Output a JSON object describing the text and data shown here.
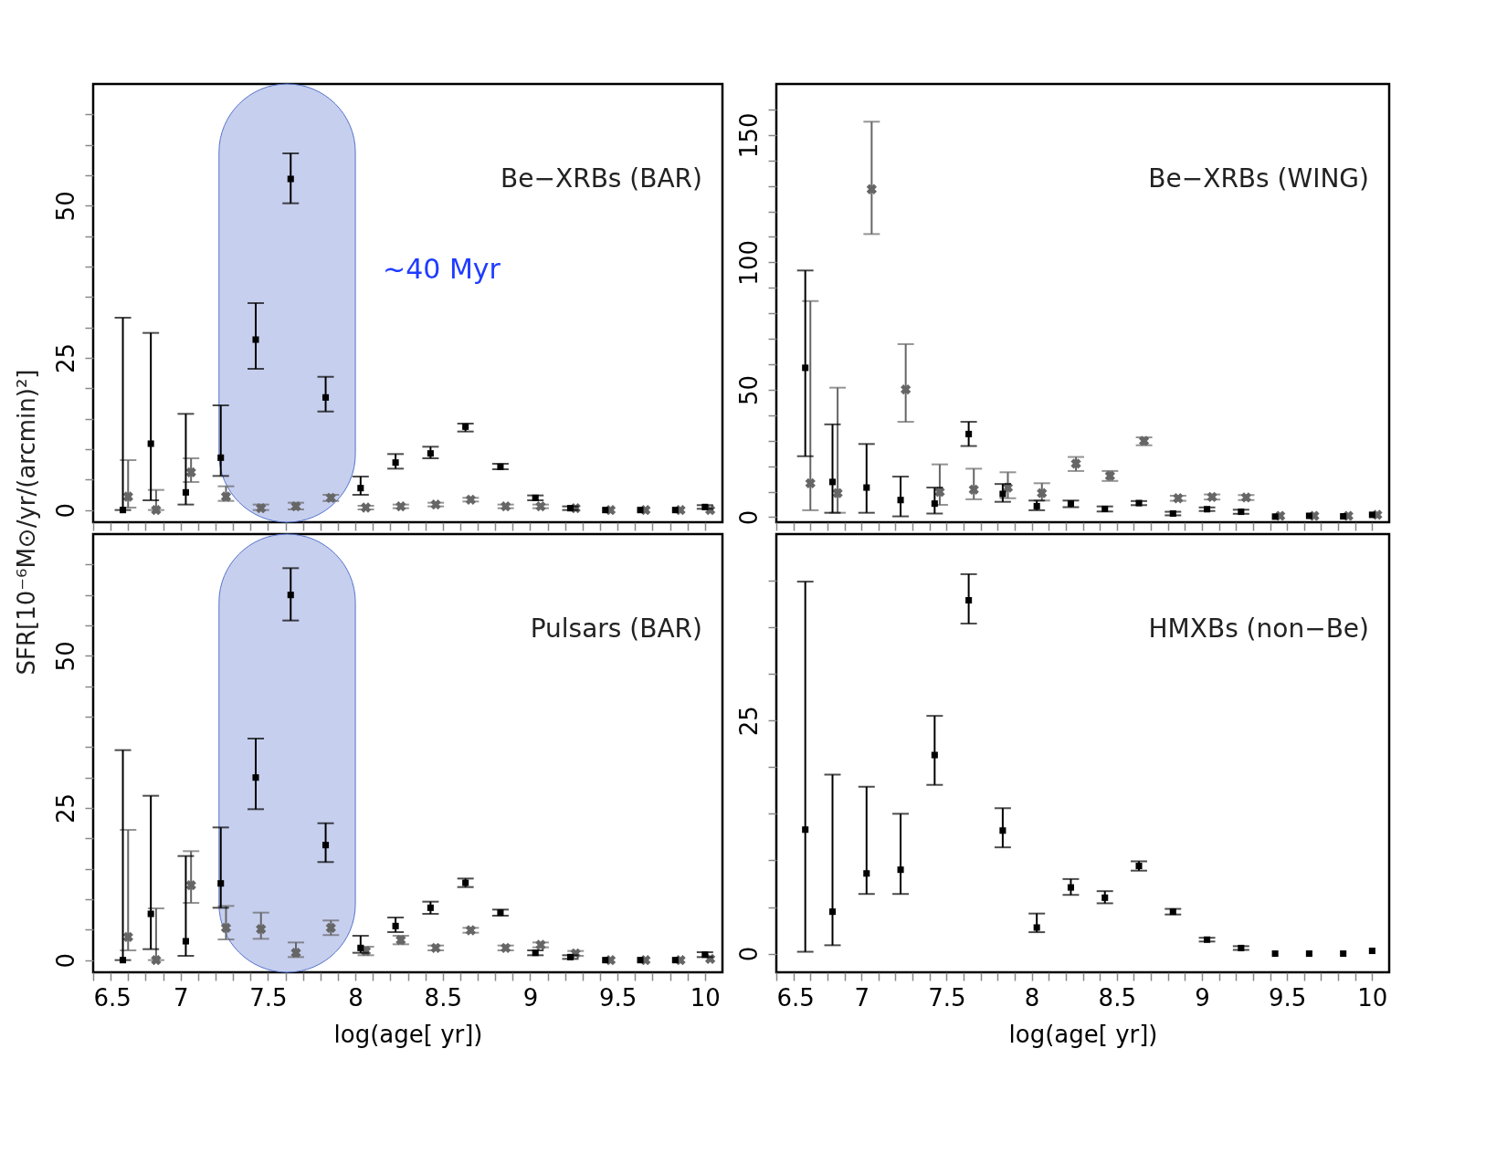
{
  "chart_data": [
    {
      "type": "scatter",
      "title": "Be−XRBs (BAR)",
      "ylabel": "SFR[10⁻⁶M⊙/yr/(arcmin)²]",
      "tick_labels": "y",
      "xlim": [
        6.5,
        10.1
      ],
      "xticks": [
        6.5,
        {
          "value": 6.6,
          "label": null
        },
        {
          "value": 6.7,
          "label": null
        },
        {
          "value": 6.8,
          "label": null
        },
        {
          "value": 6.9,
          "label": null
        },
        7,
        {
          "value": 7.1,
          "label": null
        },
        {
          "value": 7.2,
          "label": null
        },
        {
          "value": 7.3,
          "label": null
        },
        {
          "value": 7.4,
          "label": null
        },
        7.5,
        {
          "value": 7.6,
          "label": null
        },
        {
          "value": 7.7,
          "label": null
        },
        {
          "value": 7.8,
          "label": null
        },
        {
          "value": 7.9,
          "label": null
        },
        8,
        {
          "value": 8.1,
          "label": null
        },
        {
          "value": 8.2,
          "label": null
        },
        {
          "value": 8.3,
          "label": null
        },
        {
          "value": 8.4,
          "label": null
        },
        8.5,
        {
          "value": 8.6,
          "label": null
        },
        {
          "value": 8.7,
          "label": null
        },
        {
          "value": 8.8,
          "label": null
        },
        {
          "value": 8.9,
          "label": null
        },
        9,
        {
          "value": 9.1,
          "label": null
        },
        {
          "value": 9.2,
          "label": null
        },
        {
          "value": 9.3,
          "label": null
        },
        {
          "value": 9.4,
          "label": null
        },
        9.5,
        {
          "value": 9.6,
          "label": null
        },
        {
          "value": 9.7,
          "label": null
        },
        {
          "value": 9.8,
          "label": null
        },
        {
          "value": 9.9,
          "label": null
        },
        10
      ],
      "ylim": [
        -2,
        70
      ],
      "yticks": [
        0,
        {
          "value": 5,
          "label": null
        },
        {
          "value": 10,
          "label": null
        },
        {
          "value": 15,
          "label": null
        },
        {
          "value": 20,
          "label": null
        },
        25,
        {
          "value": 30,
          "label": null
        },
        {
          "value": 35,
          "label": null
        },
        {
          "value": 40,
          "label": null
        },
        {
          "value": 45,
          "label": null
        },
        50,
        {
          "value": 55,
          "label": null
        },
        {
          "value": 60,
          "label": null
        },
        {
          "value": 65,
          "label": null
        }
      ],
      "bands": [
        {
          "axis": "x",
          "from": 7.22,
          "to": 8.0,
          "label": "~40 Myr",
          "color": "#c5cdee"
        }
      ],
      "x": [
        6.67,
        6.83,
        7.03,
        7.23,
        7.43,
        7.63,
        7.83,
        8.03,
        8.23,
        8.43,
        8.63,
        8.83,
        9.03,
        9.23,
        9.43,
        9.63,
        9.83,
        10.0
      ],
      "series": [
        {
          "color": "#666666",
          "marker": "cross",
          "x": [
            6.7,
            6.86,
            7.06,
            7.26,
            7.46,
            7.66,
            7.86,
            8.06,
            8.26,
            8.46,
            8.66,
            8.86,
            9.06,
            9.26,
            9.46,
            9.66,
            9.86,
            10.03
          ],
          "values": [
            2.2,
            0,
            6.2,
            2.2,
            0.3,
            0.6,
            2.0,
            0.4,
            0.6,
            0.9,
            1.7,
            0.6,
            0.6,
            0.3,
            0,
            0,
            0,
            0
          ],
          "errors": [
            [
              0.4,
              8.2
            ],
            [
              0,
              3.3
            ],
            [
              4.6,
              8.5
            ],
            [
              1.5,
              3.9
            ],
            [
              0,
              0.9
            ],
            [
              0.1,
              1.2
            ],
            [
              1.5,
              2.5
            ],
            [
              0.1,
              0.7
            ],
            [
              0.3,
              0.9
            ],
            [
              0.6,
              1.2
            ],
            [
              1.4,
              2.0
            ],
            [
              0.3,
              0.9
            ],
            [
              0.3,
              0.9
            ],
            null,
            null,
            null,
            null,
            null
          ]
        },
        {
          "color": "#000000",
          "marker": "square",
          "values": [
            0,
            10.9,
            2.9,
            8.6,
            28.0,
            54.4,
            18.5,
            3.6,
            7.8,
            9.3,
            13.7,
            7.1,
            2.0,
            0.3,
            0,
            0,
            0,
            0.5
          ],
          "errors": [
            [
              0,
              31.6
            ],
            [
              1.6,
              29.1
            ],
            [
              0.9,
              15.8
            ],
            [
              5.6,
              17.2
            ],
            [
              23.2,
              34.0
            ],
            [
              50.4,
              58.6
            ],
            [
              16.2,
              21.9
            ],
            [
              2.5,
              5.5
            ],
            [
              6.8,
              9.2
            ],
            [
              8.5,
              10.4
            ],
            [
              12.9,
              14.2
            ],
            [
              6.7,
              7.6
            ],
            [
              1.6,
              2.4
            ],
            [
              0,
              0.6
            ],
            null,
            null,
            null,
            [
              0.2,
              0.8
            ]
          ]
        }
      ]
    },
    {
      "type": "scatter",
      "title": "Be−XRBs (WING)",
      "tick_labels": "y",
      "xlim": [
        6.5,
        10.1
      ],
      "xticks": [
        6.5,
        {
          "value": 6.6,
          "label": null
        },
        {
          "value": 6.7,
          "label": null
        },
        {
          "value": 6.8,
          "label": null
        },
        {
          "value": 6.9,
          "label": null
        },
        7,
        {
          "value": 7.1,
          "label": null
        },
        {
          "value": 7.2,
          "label": null
        },
        {
          "value": 7.3,
          "label": null
        },
        {
          "value": 7.4,
          "label": null
        },
        7.5,
        {
          "value": 7.6,
          "label": null
        },
        {
          "value": 7.7,
          "label": null
        },
        {
          "value": 7.8,
          "label": null
        },
        {
          "value": 7.9,
          "label": null
        },
        8,
        {
          "value": 8.1,
          "label": null
        },
        {
          "value": 8.2,
          "label": null
        },
        {
          "value": 8.3,
          "label": null
        },
        {
          "value": 8.4,
          "label": null
        },
        8.5,
        {
          "value": 8.6,
          "label": null
        },
        {
          "value": 8.7,
          "label": null
        },
        {
          "value": 8.8,
          "label": null
        },
        {
          "value": 8.9,
          "label": null
        },
        9,
        {
          "value": 9.1,
          "label": null
        },
        {
          "value": 9.2,
          "label": null
        },
        {
          "value": 9.3,
          "label": null
        },
        {
          "value": 9.4,
          "label": null
        },
        9.5,
        {
          "value": 9.6,
          "label": null
        },
        {
          "value": 9.7,
          "label": null
        },
        {
          "value": 9.8,
          "label": null
        },
        {
          "value": 9.9,
          "label": null
        },
        10
      ],
      "ylim": [
        -2,
        170
      ],
      "yticks": [
        0,
        {
          "value": 10,
          "label": null
        },
        {
          "value": 20,
          "label": null
        },
        {
          "value": 30,
          "label": null
        },
        {
          "value": 40,
          "label": null
        },
        50,
        {
          "value": 60,
          "label": null
        },
        {
          "value": 70,
          "label": null
        },
        {
          "value": 80,
          "label": null
        },
        {
          "value": 90,
          "label": null
        },
        100,
        {
          "value": 110,
          "label": null
        },
        {
          "value": 120,
          "label": null
        },
        {
          "value": 130,
          "label": null
        },
        {
          "value": 140,
          "label": null
        },
        150,
        {
          "value": 160,
          "label": null
        }
      ],
      "x": [
        6.67,
        6.83,
        7.03,
        7.23,
        7.43,
        7.63,
        7.83,
        8.03,
        8.23,
        8.43,
        8.63,
        8.83,
        9.03,
        9.23,
        9.43,
        9.63,
        9.83,
        10.0
      ],
      "series": [
        {
          "color": "#666666",
          "marker": "cross",
          "x": [
            6.7,
            6.86,
            7.06,
            7.26,
            7.46,
            7.66,
            7.86,
            8.06,
            8.26,
            8.46,
            8.66,
            8.86,
            9.06,
            9.26,
            9.46,
            9.66,
            9.86,
            10.03
          ],
          "values": [
            13.3,
            9.4,
            128.7,
            50.1,
            9.9,
            10.8,
            11.6,
            9.4,
            21.0,
            16.2,
            29.9,
            7.4,
            7.9,
            7.7,
            0.5,
            0.5,
            0.5,
            0.9
          ],
          "errors": [
            [
              2.7,
              84.8
            ],
            [
              1.7,
              50.8
            ],
            [
              111.1,
              155.2
            ],
            [
              37.4,
              67.9
            ],
            [
              4.8,
              20.7
            ],
            [
              7.0,
              19.0
            ],
            [
              7.4,
              17.6
            ],
            [
              6.5,
              13.3
            ],
            [
              18.1,
              23.6
            ],
            [
              14.2,
              18.1
            ],
            [
              28.2,
              31.3
            ],
            [
              6.4,
              8.4
            ],
            [
              6.9,
              8.9
            ],
            [
              6.7,
              8.7
            ],
            null,
            null,
            null,
            null
          ]
        },
        {
          "color": "#000000",
          "marker": "square",
          "values": [
            58.6,
            13.8,
            11.6,
            6.7,
            5.3,
            32.6,
            9.1,
            4.3,
            5.3,
            3.2,
            5.5,
            1.4,
            3.1,
            2.1,
            0.2,
            0.5,
            0.3,
            0.9
          ],
          "errors": [
            [
              23.9,
              96.8
            ],
            [
              1.7,
              36.4
            ],
            [
              1.7,
              28.7
            ],
            [
              0.3,
              15.9
            ],
            [
              1.4,
              11.6
            ],
            [
              27.9,
              37.4
            ],
            [
              6.0,
              13.0
            ],
            [
              2.7,
              6.5
            ],
            [
              3.9,
              6.5
            ],
            [
              2.2,
              4.2
            ],
            [
              4.7,
              6.3
            ],
            [
              0.7,
              2.1
            ],
            [
              2.4,
              3.8
            ],
            [
              1.3,
              2.9
            ],
            null,
            null,
            null,
            null
          ]
        }
      ]
    },
    {
      "type": "scatter",
      "title": "Pulsars (BAR)",
      "xlabel": "log(age[ yr])",
      "xlim": [
        6.5,
        10.1
      ],
      "xticks": [
        6.5,
        {
          "value": 6.6,
          "label": null
        },
        {
          "value": 6.7,
          "label": null
        },
        {
          "value": 6.8,
          "label": null
        },
        {
          "value": 6.9,
          "label": null
        },
        7,
        {
          "value": 7.1,
          "label": null
        },
        {
          "value": 7.2,
          "label": null
        },
        {
          "value": 7.3,
          "label": null
        },
        {
          "value": 7.4,
          "label": null
        },
        7.5,
        {
          "value": 7.6,
          "label": null
        },
        {
          "value": 7.7,
          "label": null
        },
        {
          "value": 7.8,
          "label": null
        },
        {
          "value": 7.9,
          "label": null
        },
        8,
        {
          "value": 8.1,
          "label": null
        },
        {
          "value": 8.2,
          "label": null
        },
        {
          "value": 8.3,
          "label": null
        },
        {
          "value": 8.4,
          "label": null
        },
        8.5,
        {
          "value": 8.6,
          "label": null
        },
        {
          "value": 8.7,
          "label": null
        },
        {
          "value": 8.8,
          "label": null
        },
        {
          "value": 8.9,
          "label": null
        },
        9,
        {
          "value": 9.1,
          "label": null
        },
        {
          "value": 9.2,
          "label": null
        },
        {
          "value": 9.3,
          "label": null
        },
        {
          "value": 9.4,
          "label": null
        },
        9.5,
        {
          "value": 9.6,
          "label": null
        },
        {
          "value": 9.7,
          "label": null
        },
        {
          "value": 9.8,
          "label": null
        },
        {
          "value": 9.9,
          "label": null
        },
        10
      ],
      "ylim": [
        -2,
        70
      ],
      "yticks": [
        0,
        {
          "value": 5,
          "label": null
        },
        {
          "value": 10,
          "label": null
        },
        {
          "value": 15,
          "label": null
        },
        {
          "value": 20,
          "label": null
        },
        25,
        {
          "value": 30,
          "label": null
        },
        {
          "value": 35,
          "label": null
        },
        {
          "value": 40,
          "label": null
        },
        {
          "value": 45,
          "label": null
        },
        50,
        {
          "value": 55,
          "label": null
        },
        {
          "value": 60,
          "label": null
        },
        {
          "value": 65,
          "label": null
        }
      ],
      "bands": [
        {
          "axis": "x",
          "from": 7.22,
          "to": 8.0,
          "color": "#c5cdee"
        }
      ],
      "x": [
        6.67,
        6.83,
        7.03,
        7.23,
        7.43,
        7.63,
        7.83,
        8.03,
        8.23,
        8.43,
        8.63,
        8.83,
        9.03,
        9.23,
        9.43,
        9.63,
        9.83,
        10.0
      ],
      "series": [
        {
          "color": "#666666",
          "marker": "cross",
          "x": [
            6.7,
            6.86,
            7.06,
            7.26,
            7.46,
            7.66,
            7.86,
            8.06,
            8.26,
            8.46,
            8.66,
            8.86,
            9.06,
            9.26,
            9.46,
            9.66,
            9.86,
            10.03
          ],
          "values": [
            3.8,
            0,
            12.3,
            5.3,
            5.1,
            1.2,
            5.3,
            1.5,
            3.3,
            2.0,
            4.9,
            2.0,
            2.5,
            1.1,
            0,
            0,
            0,
            0.2
          ],
          "errors": [
            [
              1.6,
              21.4
            ],
            [
              0,
              8.5
            ],
            [
              9.4,
              17.9
            ],
            [
              3.4,
              8.9
            ],
            [
              3.5,
              7.8
            ],
            [
              0.5,
              2.9
            ],
            [
              4.1,
              6.5
            ],
            [
              0.8,
              2.2
            ],
            [
              2.6,
              4.0
            ],
            [
              1.6,
              2.4
            ],
            [
              4.5,
              5.3
            ],
            [
              1.6,
              2.4
            ],
            [
              2.1,
              2.9
            ],
            [
              0.7,
              1.5
            ],
            null,
            null,
            null,
            null
          ]
        },
        {
          "color": "#000000",
          "marker": "square",
          "values": [
            0,
            7.6,
            3.1,
            12.6,
            30.0,
            60.0,
            18.9,
            2.0,
            5.6,
            8.6,
            12.7,
            7.8,
            1.2,
            0.5,
            0,
            0,
            0,
            0.9
          ],
          "errors": [
            [
              0,
              34.5
            ],
            [
              1.8,
              27.0
            ],
            [
              0.7,
              17.1
            ],
            [
              8.6,
              21.8
            ],
            [
              24.8,
              36.4
            ],
            [
              55.8,
              64.4
            ],
            [
              16.1,
              22.5
            ],
            [
              1.2,
              4.0
            ],
            [
              4.6,
              7.0
            ],
            [
              7.6,
              9.6
            ],
            [
              12.0,
              13.4
            ],
            [
              7.3,
              8.3
            ],
            [
              0.8,
              1.6
            ],
            [
              0.2,
              0.8
            ],
            null,
            null,
            null,
            [
              0.5,
              1.3
            ]
          ]
        }
      ]
    },
    {
      "type": "scatter",
      "title": "HMXBs (non−Be)",
      "xlabel": "log(age[ yr])",
      "xlim": [
        6.5,
        10.1
      ],
      "xticks": [
        6.5,
        {
          "value": 6.6,
          "label": null
        },
        {
          "value": 6.7,
          "label": null
        },
        {
          "value": 6.8,
          "label": null
        },
        {
          "value": 6.9,
          "label": null
        },
        7,
        {
          "value": 7.1,
          "label": null
        },
        {
          "value": 7.2,
          "label": null
        },
        {
          "value": 7.3,
          "label": null
        },
        {
          "value": 7.4,
          "label": null
        },
        7.5,
        {
          "value": 7.6,
          "label": null
        },
        {
          "value": 7.7,
          "label": null
        },
        {
          "value": 7.8,
          "label": null
        },
        {
          "value": 7.9,
          "label": null
        },
        8,
        {
          "value": 8.1,
          "label": null
        },
        {
          "value": 8.2,
          "label": null
        },
        {
          "value": 8.3,
          "label": null
        },
        {
          "value": 8.4,
          "label": null
        },
        8.5,
        {
          "value": 8.6,
          "label": null
        },
        {
          "value": 8.7,
          "label": null
        },
        {
          "value": 8.8,
          "label": null
        },
        {
          "value": 8.9,
          "label": null
        },
        9,
        {
          "value": 9.1,
          "label": null
        },
        {
          "value": 9.2,
          "label": null
        },
        {
          "value": 9.3,
          "label": null
        },
        {
          "value": 9.4,
          "label": null
        },
        9.5,
        {
          "value": 9.6,
          "label": null
        },
        {
          "value": 9.7,
          "label": null
        },
        {
          "value": 9.8,
          "label": null
        },
        {
          "value": 9.9,
          "label": null
        },
        10
      ],
      "ylim": [
        -2,
        45
      ],
      "yticks": [
        0,
        {
          "value": 5,
          "label": null
        },
        {
          "value": 10,
          "label": null
        },
        {
          "value": 15,
          "label": null
        },
        {
          "value": 20,
          "label": null
        },
        25,
        {
          "value": 30,
          "label": null
        },
        {
          "value": 35,
          "label": null
        },
        {
          "value": 40,
          "label": null
        }
      ],
      "x": [
        6.67,
        6.83,
        7.03,
        7.23,
        7.43,
        7.63,
        7.83,
        8.03,
        8.23,
        8.43,
        8.63,
        8.83,
        9.03,
        9.23,
        9.43,
        9.63,
        9.83,
        10.0
      ],
      "series": [
        {
          "color": "#000000",
          "marker": "square",
          "values": [
            13.3,
            4.5,
            8.6,
            9.0,
            21.3,
            37.9,
            13.2,
            2.8,
            7.1,
            6.0,
            9.4,
            4.5,
            1.5,
            0.6,
            0,
            0,
            0,
            0.3
          ],
          "errors": [
            [
              0.2,
              39.9
            ],
            [
              0.9,
              19.2
            ],
            [
              6.4,
              17.9
            ],
            [
              6.4,
              15.0
            ],
            [
              18.1,
              25.5
            ],
            [
              35.4,
              40.7
            ],
            [
              11.4,
              15.6
            ],
            [
              2.3,
              4.3
            ],
            [
              6.3,
              8.0
            ],
            [
              5.4,
              6.7
            ],
            [
              8.9,
              9.9
            ],
            [
              4.2,
              4.8
            ],
            [
              1.3,
              1.7
            ],
            [
              0.4,
              0.8
            ],
            null,
            null,
            null,
            null
          ]
        }
      ]
    }
  ]
}
